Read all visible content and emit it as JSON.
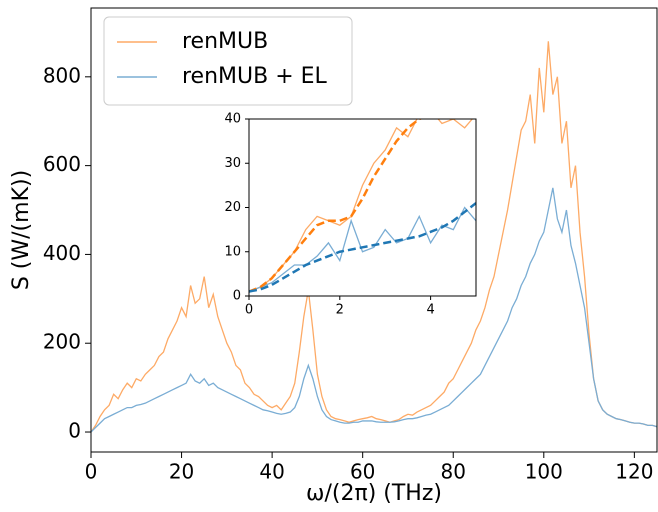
{
  "chart_data": [
    {
      "type": "line",
      "xlabel": "ω/(2π) (THz)",
      "ylabel": "S (W/(mK))",
      "xlim": [
        0,
        125
      ],
      "ylim": [
        -45,
        955
      ],
      "xticks": [
        0,
        20,
        40,
        60,
        80,
        100,
        120
      ],
      "yticks": [
        0,
        200,
        400,
        600,
        800
      ],
      "legend": "upper left",
      "x": [
        0,
        1,
        2,
        3,
        4,
        5,
        6,
        7,
        8,
        9,
        10,
        11,
        12,
        13,
        14,
        15,
        16,
        17,
        18,
        19,
        20,
        21,
        22,
        23,
        24,
        25,
        26,
        27,
        28,
        29,
        30,
        31,
        32,
        33,
        34,
        35,
        36,
        37,
        38,
        39,
        40,
        41,
        42,
        43,
        44,
        45,
        46,
        47,
        48,
        49,
        50,
        51,
        52,
        53,
        54,
        55,
        56,
        57,
        58,
        59,
        60,
        61,
        62,
        63,
        64,
        65,
        66,
        67,
        68,
        69,
        70,
        71,
        72,
        73,
        74,
        75,
        76,
        77,
        78,
        79,
        80,
        81,
        82,
        83,
        84,
        85,
        86,
        87,
        88,
        89,
        90,
        91,
        92,
        93,
        94,
        95,
        96,
        97,
        98,
        99,
        100,
        101,
        102,
        103,
        104,
        105,
        106,
        107,
        108,
        109,
        110,
        111,
        112,
        113,
        114,
        115,
        116,
        117,
        118,
        119,
        120,
        121,
        122,
        123,
        124,
        125
      ],
      "series": [
        {
          "name": "renMUB",
          "color": "#fdaa66",
          "values": [
            0,
            15,
            35,
            50,
            60,
            85,
            75,
            95,
            110,
            100,
            120,
            115,
            130,
            140,
            150,
            170,
            180,
            210,
            230,
            250,
            280,
            260,
            330,
            290,
            300,
            350,
            280,
            310,
            260,
            230,
            200,
            180,
            150,
            140,
            110,
            100,
            85,
            80,
            70,
            60,
            55,
            60,
            50,
            65,
            80,
            110,
            180,
            260,
            320,
            230,
            130,
            80,
            50,
            35,
            30,
            28,
            25,
            22,
            25,
            28,
            30,
            32,
            35,
            30,
            28,
            25,
            22,
            25,
            28,
            35,
            40,
            38,
            45,
            50,
            55,
            60,
            70,
            80,
            90,
            110,
            120,
            140,
            160,
            180,
            200,
            230,
            250,
            280,
            320,
            350,
            400,
            450,
            500,
            560,
            620,
            680,
            700,
            760,
            650,
            820,
            720,
            880,
            760,
            800,
            650,
            700,
            550,
            600,
            450,
            350,
            220,
            120,
            70,
            50,
            40,
            35,
            30,
            28,
            25,
            22,
            20,
            20,
            18,
            15,
            15,
            12
          ]
        },
        {
          "name": "renMUB + EL",
          "color": "#7aadd4",
          "values": [
            0,
            10,
            20,
            30,
            35,
            40,
            45,
            50,
            55,
            55,
            60,
            62,
            65,
            70,
            75,
            80,
            85,
            90,
            95,
            100,
            105,
            110,
            130,
            115,
            110,
            120,
            105,
            110,
            100,
            95,
            90,
            85,
            80,
            75,
            70,
            65,
            60,
            55,
            50,
            48,
            45,
            42,
            40,
            42,
            45,
            55,
            80,
            120,
            150,
            120,
            80,
            50,
            35,
            28,
            25,
            22,
            20,
            20,
            22,
            22,
            25,
            25,
            25,
            23,
            22,
            22,
            22,
            23,
            25,
            28,
            30,
            30,
            32,
            35,
            38,
            40,
            45,
            50,
            55,
            60,
            70,
            80,
            90,
            100,
            110,
            120,
            130,
            150,
            170,
            190,
            210,
            230,
            250,
            280,
            300,
            330,
            350,
            380,
            400,
            430,
            450,
            500,
            550,
            480,
            450,
            500,
            420,
            380,
            330,
            280,
            200,
            120,
            70,
            50,
            40,
            35,
            30,
            28,
            25,
            22,
            20,
            20,
            18,
            15,
            15,
            12
          ]
        }
      ]
    },
    {
      "type": "line",
      "xlim": [
        0,
        5
      ],
      "ylim": [
        0,
        40
      ],
      "xticks": [
        0,
        2,
        4
      ],
      "yticks": [
        0,
        10,
        20,
        30,
        40
      ],
      "x": [
        0,
        0.25,
        0.5,
        0.75,
        1,
        1.25,
        1.5,
        1.75,
        2,
        2.25,
        2.5,
        2.75,
        3,
        3.25,
        3.5,
        3.75,
        4,
        4.25,
        4.5,
        4.75,
        5
      ],
      "series": [
        {
          "color": "#fdaa66",
          "values": [
            1,
            2,
            4,
            7,
            10,
            15,
            18,
            17,
            16,
            18,
            25,
            30,
            33,
            38,
            36,
            41,
            42,
            39,
            40,
            38,
            41
          ]
        },
        {
          "color": "#7aadd4",
          "values": [
            1,
            2,
            3,
            5,
            7,
            7,
            9,
            12,
            8,
            17,
            10,
            11,
            15,
            12,
            13,
            18,
            12,
            16,
            15,
            20,
            17
          ]
        },
        {
          "color": "#ff7f0e",
          "linestyle": "dashed",
          "values": [
            1,
            2,
            4,
            7,
            10,
            13,
            16,
            17,
            17,
            18,
            22,
            27,
            31,
            35,
            38,
            40,
            41,
            42,
            42,
            42,
            42
          ]
        },
        {
          "color": "#1f77b4",
          "linestyle": "dashed",
          "values": [
            1,
            1.5,
            2.5,
            4,
            5.5,
            7,
            8,
            9,
            10,
            10.5,
            11,
            11.5,
            12,
            12.5,
            13,
            13.5,
            14.5,
            15.5,
            17,
            19,
            21
          ]
        }
      ]
    }
  ]
}
